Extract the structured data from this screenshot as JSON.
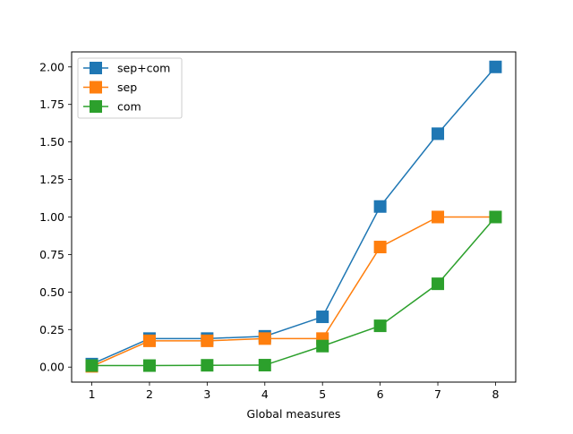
{
  "chart_data": {
    "type": "line",
    "title": "",
    "xlabel": "Global measures",
    "ylabel": "",
    "x": [
      1,
      2,
      3,
      4,
      5,
      6,
      7,
      8
    ],
    "xlim": [
      0.65,
      8.35
    ],
    "ylim": [
      -0.1,
      2.1
    ],
    "xticks": [
      1,
      2,
      3,
      4,
      5,
      6,
      7,
      8
    ],
    "yticks": [
      0.0,
      0.25,
      0.5,
      0.75,
      1.0,
      1.25,
      1.5,
      1.75,
      2.0
    ],
    "grid": false,
    "legend_position": "upper-left",
    "marker": "square",
    "series": [
      {
        "name": "sep+com",
        "color": "#1f77b4",
        "values": [
          0.02,
          0.19,
          0.19,
          0.205,
          0.335,
          1.07,
          1.555,
          2.0
        ]
      },
      {
        "name": "sep",
        "color": "#ff7f0e",
        "values": [
          0.005,
          0.175,
          0.175,
          0.19,
          0.19,
          0.8,
          1.0,
          1.0
        ]
      },
      {
        "name": "com",
        "color": "#2ca02c",
        "values": [
          0.01,
          0.01,
          0.012,
          0.013,
          0.14,
          0.275,
          0.555,
          1.0
        ]
      }
    ]
  }
}
